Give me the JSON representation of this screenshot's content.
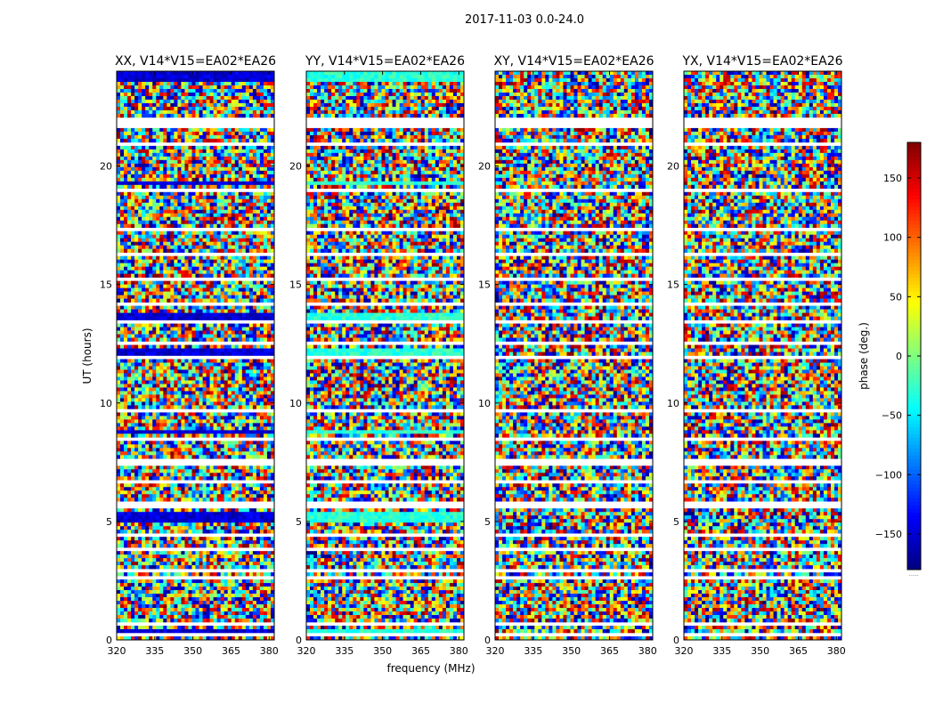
{
  "figure": {
    "suptitle": "2017-11-03 0.0-24.0",
    "xlabel": "frequency (MHz)",
    "ylabel": "UT (hours)"
  },
  "colorbar": {
    "label": "phase (deg.)",
    "range": [
      -180,
      180
    ],
    "ticks": [
      150,
      100,
      50,
      0,
      -50,
      -100,
      -150
    ],
    "tick_labels": [
      "150",
      "100",
      "50",
      "0",
      "−50",
      "−100",
      "−150"
    ],
    "colormap": [
      "#00007f",
      "#0000ff",
      "#007fff",
      "#00ffff",
      "#7fff7f",
      "#ffff00",
      "#ff7f00",
      "#ff0000",
      "#7f0000"
    ],
    "corner_text": "......"
  },
  "chart_data": [
    {
      "type": "heatmap",
      "title": "XX, V14*V15=EA02*EA26",
      "xlabel": "",
      "ylabel": "UT (hours)",
      "x_range": [
        320,
        382
      ],
      "y_range": [
        0,
        24
      ],
      "x_ticks": [
        320,
        335,
        350,
        365,
        380
      ],
      "y_ticks": [
        0,
        5,
        10,
        15,
        20
      ],
      "value": "phase (deg.)",
      "value_range": [
        -180,
        180
      ]
    },
    {
      "type": "heatmap",
      "title": "YY, V14*V15=EA02*EA26",
      "xlabel": "frequency (MHz)",
      "ylabel": "",
      "x_range": [
        320,
        382
      ],
      "y_range": [
        0,
        24
      ],
      "x_ticks": [
        320,
        335,
        350,
        365,
        380
      ],
      "y_ticks": [
        0,
        5,
        10,
        15,
        20
      ],
      "value": "phase (deg.)",
      "value_range": [
        -180,
        180
      ]
    },
    {
      "type": "heatmap",
      "title": "XY, V14*V15=EA02*EA26",
      "xlabel": "",
      "ylabel": "",
      "x_range": [
        320,
        382
      ],
      "y_range": [
        0,
        24
      ],
      "x_ticks": [
        320,
        335,
        350,
        365,
        380
      ],
      "y_ticks": [
        0,
        5,
        10,
        15,
        20
      ],
      "value": "phase (deg.)",
      "value_range": [
        -180,
        180
      ]
    },
    {
      "type": "heatmap",
      "title": "YX, V14*V15=EA02*EA26",
      "xlabel": "",
      "ylabel": "",
      "x_range": [
        320,
        382
      ],
      "y_range": [
        0,
        24
      ],
      "x_ticks": [
        320,
        335,
        350,
        365,
        380
      ],
      "y_ticks": [
        0,
        5,
        10,
        15,
        20
      ],
      "value": "phase (deg.)",
      "value_range": [
        -180,
        180
      ]
    }
  ]
}
